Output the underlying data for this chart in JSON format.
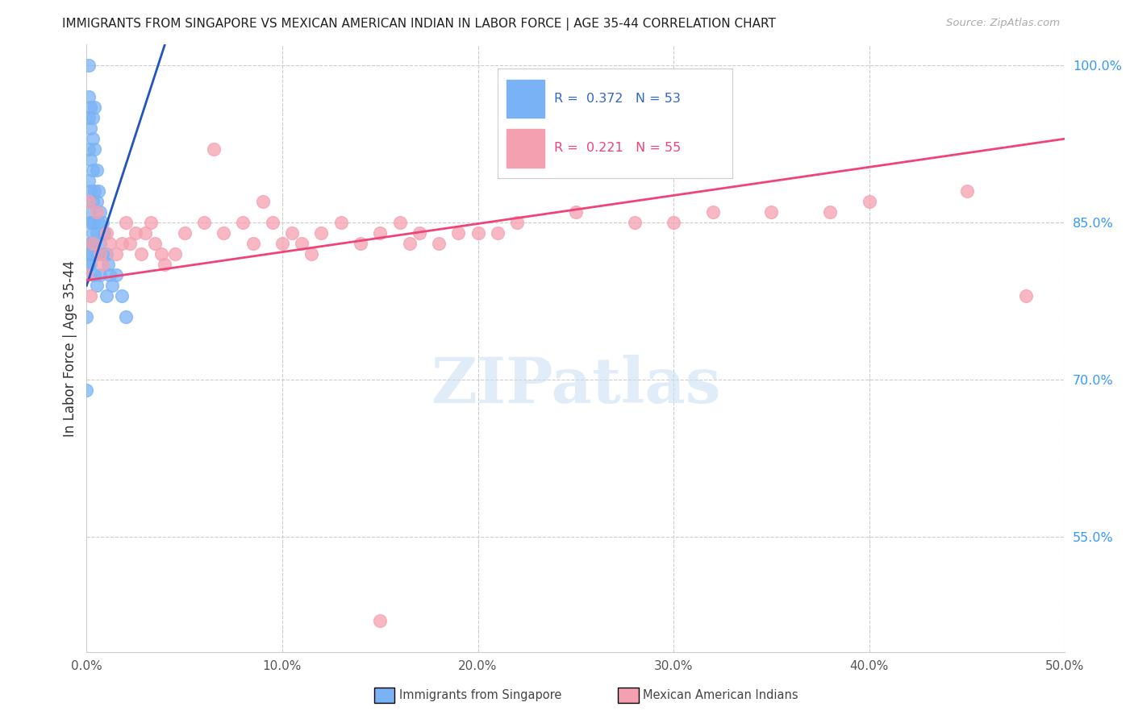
{
  "title": "IMMIGRANTS FROM SINGAPORE VS MEXICAN AMERICAN INDIAN IN LABOR FORCE | AGE 35-44 CORRELATION CHART",
  "source": "Source: ZipAtlas.com",
  "ylabel": "In Labor Force | Age 35-44",
  "xlim": [
    0.0,
    0.5
  ],
  "ylim": [
    0.44,
    1.02
  ],
  "xticks": [
    0.0,
    0.1,
    0.2,
    0.3,
    0.4,
    0.5
  ],
  "xticklabels": [
    "0.0%",
    "10.0%",
    "20.0%",
    "30.0%",
    "40.0%",
    "50.0%"
  ],
  "yticks": [
    0.55,
    0.7,
    0.85,
    1.0
  ],
  "yticklabels": [
    "55.0%",
    "70.0%",
    "85.0%",
    "100.0%"
  ],
  "background_color": "#ffffff",
  "grid_color": "#cccccc",
  "watermark_text": "ZIPatlas",
  "series": [
    {
      "name": "Immigrants from Singapore",
      "R": 0.372,
      "N": 53,
      "color": "#7ab3f5",
      "trend_color": "#2255bb",
      "x": [
        0.0,
        0.0,
        0.0,
        0.001,
        0.001,
        0.001,
        0.001,
        0.001,
        0.001,
        0.002,
        0.002,
        0.002,
        0.002,
        0.002,
        0.002,
        0.002,
        0.003,
        0.003,
        0.003,
        0.003,
        0.003,
        0.003,
        0.004,
        0.004,
        0.004,
        0.004,
        0.005,
        0.005,
        0.005,
        0.005,
        0.006,
        0.006,
        0.006,
        0.007,
        0.007,
        0.008,
        0.008,
        0.009,
        0.01,
        0.011,
        0.012,
        0.013,
        0.015,
        0.018,
        0.02,
        0.0,
        0.001,
        0.002,
        0.003,
        0.004,
        0.005,
        0.007,
        0.01
      ],
      "y": [
        0.82,
        0.76,
        0.69,
        1.0,
        0.97,
        0.95,
        0.92,
        0.89,
        0.86,
        0.96,
        0.94,
        0.91,
        0.88,
        0.85,
        0.83,
        0.81,
        0.95,
        0.93,
        0.9,
        0.87,
        0.85,
        0.83,
        0.96,
        0.92,
        0.88,
        0.85,
        0.9,
        0.87,
        0.84,
        0.82,
        0.88,
        0.85,
        0.82,
        0.86,
        0.83,
        0.85,
        0.82,
        0.84,
        0.82,
        0.81,
        0.8,
        0.79,
        0.8,
        0.78,
        0.76,
        0.8,
        0.81,
        0.82,
        0.84,
        0.8,
        0.79,
        0.8,
        0.78
      ]
    },
    {
      "name": "Mexican American Indians",
      "R": 0.221,
      "N": 55,
      "color": "#f5a0b0",
      "trend_color": "#ee4477",
      "x": [
        0.0,
        0.001,
        0.002,
        0.003,
        0.005,
        0.007,
        0.008,
        0.01,
        0.012,
        0.015,
        0.018,
        0.02,
        0.022,
        0.025,
        0.028,
        0.03,
        0.033,
        0.035,
        0.038,
        0.04,
        0.045,
        0.05,
        0.06,
        0.065,
        0.07,
        0.08,
        0.085,
        0.09,
        0.095,
        0.1,
        0.105,
        0.11,
        0.115,
        0.12,
        0.13,
        0.14,
        0.15,
        0.16,
        0.165,
        0.17,
        0.18,
        0.19,
        0.2,
        0.21,
        0.22,
        0.25,
        0.28,
        0.3,
        0.32,
        0.35,
        0.38,
        0.4,
        0.45,
        0.48,
        0.15
      ],
      "y": [
        0.8,
        0.87,
        0.78,
        0.83,
        0.86,
        0.82,
        0.81,
        0.84,
        0.83,
        0.82,
        0.83,
        0.85,
        0.83,
        0.84,
        0.82,
        0.84,
        0.85,
        0.83,
        0.82,
        0.81,
        0.82,
        0.84,
        0.85,
        0.92,
        0.84,
        0.85,
        0.83,
        0.87,
        0.85,
        0.83,
        0.84,
        0.83,
        0.82,
        0.84,
        0.85,
        0.83,
        0.84,
        0.85,
        0.83,
        0.84,
        0.83,
        0.84,
        0.84,
        0.84,
        0.85,
        0.86,
        0.85,
        0.85,
        0.86,
        0.86,
        0.86,
        0.87,
        0.88,
        0.78,
        0.47
      ]
    }
  ],
  "legend": {
    "R1": "0.372",
    "N1": "53",
    "R2": "0.221",
    "N2": "55",
    "color1": "#7ab3f5",
    "color2": "#f5a0b0"
  },
  "trend_line_blue": {
    "x0": 0.0,
    "x1": 0.04,
    "y0": 0.79,
    "y1": 1.02
  },
  "trend_line_pink": {
    "x0": 0.0,
    "x1": 0.5,
    "y0": 0.795,
    "y1": 0.93
  }
}
